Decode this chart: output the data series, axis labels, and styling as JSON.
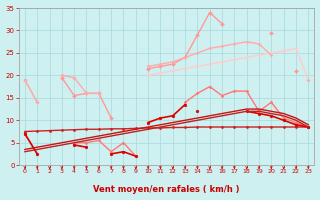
{
  "bg_color": "#cff0f0",
  "grid_color": "#aadddd",
  "xlabel": "Vent moyen/en rafales ( km/h )",
  "xlim": [
    -0.5,
    23.5
  ],
  "ylim": [
    0,
    35
  ],
  "yticks": [
    0,
    5,
    10,
    15,
    20,
    25,
    30,
    35
  ],
  "xticks": [
    0,
    1,
    2,
    3,
    4,
    5,
    6,
    7,
    8,
    9,
    10,
    11,
    12,
    13,
    14,
    15,
    16,
    17,
    18,
    19,
    20,
    21,
    22,
    23
  ],
  "tick_color": "#cc0000",
  "label_color": "#cc0000",
  "arrow_color": "#cc0000",
  "series": [
    {
      "color": "#ffbbbb",
      "lw": 1.0,
      "marker": "D",
      "ms": 1.5,
      "y": [
        19,
        14,
        null,
        null,
        null,
        null,
        null,
        null,
        null,
        null,
        null,
        null,
        null,
        null,
        null,
        null,
        null,
        null,
        null,
        null,
        null,
        null,
        null,
        19
      ]
    },
    {
      "color": "#ffcccc",
      "lw": 1.0,
      "marker": "D",
      "ms": 1.5,
      "y": [
        null,
        null,
        null,
        null,
        null,
        null,
        null,
        null,
        null,
        null,
        20,
        20.5,
        21,
        21.5,
        22,
        22.5,
        23,
        23.5,
        24,
        24.5,
        25,
        25.5,
        26,
        19
      ]
    },
    {
      "color": "#ff9999",
      "lw": 1.0,
      "marker": "D",
      "ms": 2.0,
      "y": [
        null,
        null,
        null,
        19.5,
        15.5,
        16,
        16,
        10.5,
        null,
        null,
        21.5,
        22,
        22.5,
        24,
        29,
        34,
        31.5,
        null,
        null,
        null,
        29.5,
        null,
        21,
        null
      ]
    },
    {
      "color": "#ffaaaa",
      "lw": 1.0,
      "marker": "D",
      "ms": 1.5,
      "y": [
        19,
        null,
        null,
        null,
        null,
        null,
        null,
        null,
        null,
        null,
        22,
        22.5,
        23,
        24,
        25,
        26,
        26.5,
        27,
        27.5,
        27,
        24.5,
        null,
        null,
        19
      ]
    },
    {
      "color": "#ffaaaa",
      "lw": 1.0,
      "marker": "D",
      "ms": 1.8,
      "y": [
        19,
        14,
        null,
        20,
        19.5,
        16,
        16,
        null,
        null,
        null,
        null,
        null,
        null,
        null,
        null,
        null,
        null,
        null,
        null,
        null,
        null,
        null,
        null,
        null
      ]
    },
    {
      "color": "#ff7777",
      "lw": 1.0,
      "marker": "D",
      "ms": 1.5,
      "y": [
        7,
        2.5,
        null,
        null,
        5,
        5,
        5.5,
        3,
        5,
        2,
        null,
        null,
        null,
        14,
        16,
        17.5,
        15.5,
        16.5,
        16.5,
        12,
        14,
        10.5,
        9.5,
        8.5
      ]
    },
    {
      "color": "#cc2222",
      "lw": 1.0,
      "marker": "D",
      "ms": 1.5,
      "y": [
        7.5,
        7.6,
        7.7,
        7.8,
        7.9,
        8.0,
        8.0,
        8.1,
        8.1,
        8.2,
        8.3,
        8.3,
        8.4,
        8.4,
        8.5,
        8.5,
        8.5,
        8.5,
        8.5,
        8.5,
        8.5,
        8.5,
        8.5,
        8.5
      ]
    },
    {
      "color": "#dd0000",
      "lw": 1.2,
      "marker": "o",
      "ms": 2.0,
      "y": [
        7,
        2.5,
        null,
        null,
        4.5,
        4,
        null,
        2.5,
        3,
        2,
        null,
        null,
        null,
        null,
        null,
        null,
        null,
        null,
        null,
        null,
        null,
        null,
        null,
        null
      ]
    },
    {
      "color": "#dd0000",
      "lw": 1.2,
      "marker": "o",
      "ms": 2.0,
      "y": [
        null,
        null,
        null,
        null,
        null,
        null,
        null,
        null,
        null,
        null,
        9.5,
        10.5,
        11,
        13.5,
        null,
        null,
        null,
        null,
        null,
        null,
        null,
        null,
        null,
        null
      ]
    },
    {
      "color": "#dd0000",
      "lw": 1.2,
      "marker": "o",
      "ms": 2.0,
      "y": [
        null,
        null,
        null,
        null,
        null,
        null,
        null,
        null,
        null,
        null,
        null,
        null,
        null,
        null,
        12,
        null,
        null,
        null,
        12,
        11.5,
        11,
        10,
        9,
        8.5
      ]
    },
    {
      "color": "#bb2222",
      "lw": 1.0,
      "marker": null,
      "ms": 0,
      "y": [
        3,
        3.5,
        4,
        4.5,
        5,
        5.5,
        6,
        6.5,
        7,
        7.5,
        8,
        8.5,
        9,
        9.5,
        10,
        10.5,
        11,
        11.5,
        12,
        12,
        11.5,
        11,
        10,
        8.5
      ]
    },
    {
      "color": "#cc1111",
      "lw": 1.0,
      "marker": null,
      "ms": 0,
      "y": [
        3.5,
        4,
        4.5,
        5,
        5.5,
        6,
        6.5,
        7,
        7.5,
        8,
        8.5,
        9,
        9.5,
        10,
        10.5,
        11,
        11.5,
        12,
        12.5,
        12.5,
        12,
        11.5,
        10.5,
        9
      ]
    }
  ]
}
